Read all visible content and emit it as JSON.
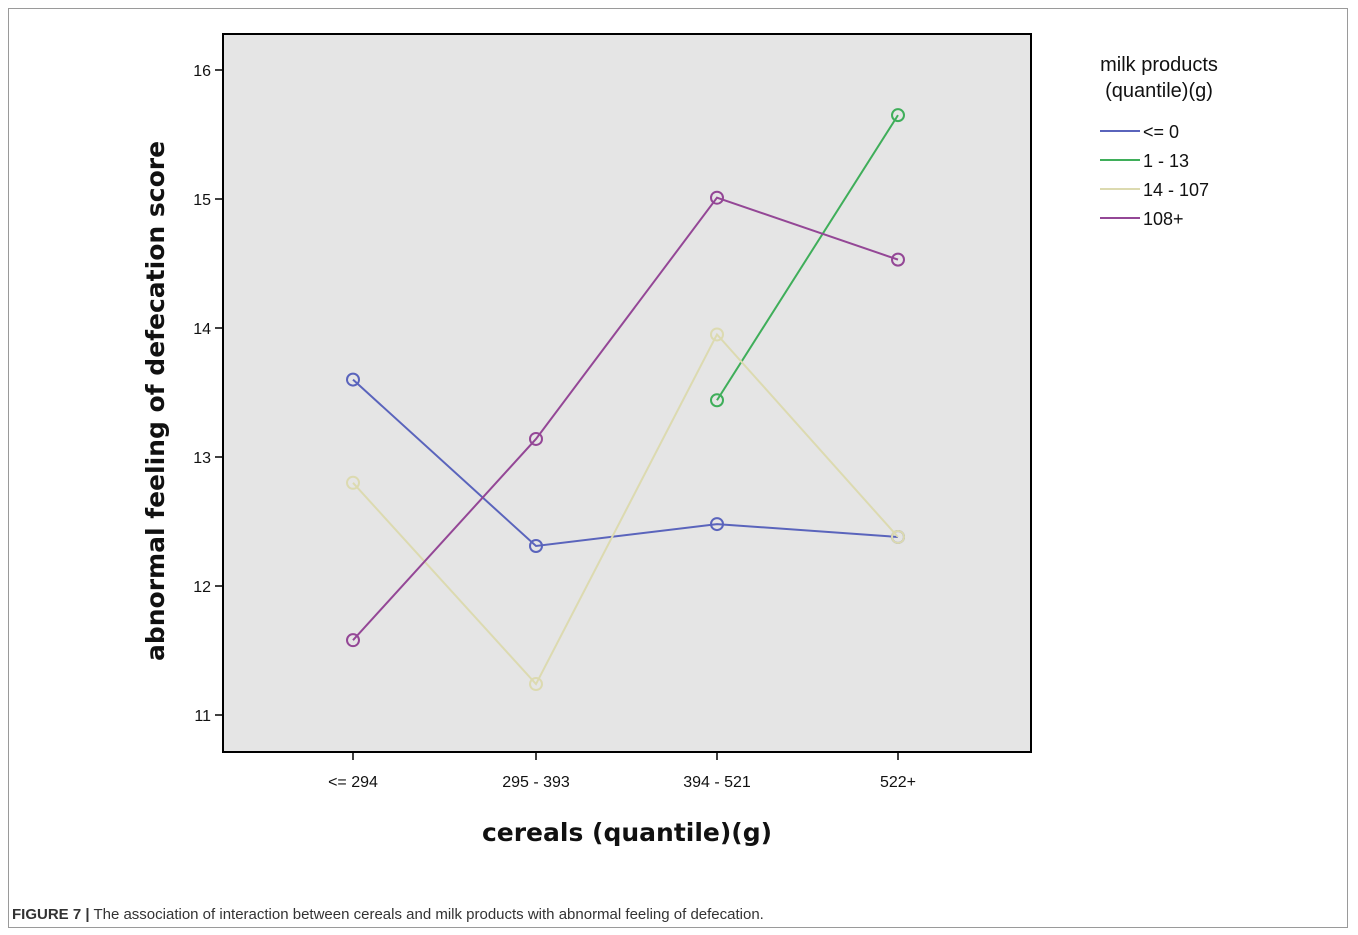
{
  "caption": {
    "label": "FIGURE 7 |",
    "text": "The association of interaction between cereals and milk products with abnormal feeling of defecation."
  },
  "chart_data": {
    "type": "line",
    "title": "",
    "xlabel": "cereals (quantile)(g)",
    "ylabel": "abnormal feeling of defecation score",
    "categories": [
      "<= 294",
      "295 - 393",
      "394 - 521",
      "522+"
    ],
    "ylim": [
      10.75,
      16.25
    ],
    "yticks": [
      11,
      12,
      13,
      14,
      15,
      16
    ],
    "grid": false,
    "plot_background": "#e5e5e5",
    "legend": {
      "title_line1": "milk products",
      "title_line2": "(quantile)(g)",
      "placement": "right"
    },
    "series": [
      {
        "name": "<= 0",
        "color": "#5a64bc",
        "values": [
          13.6,
          12.31,
          12.48,
          12.38
        ]
      },
      {
        "name": "1 - 13",
        "color": "#3fae5a",
        "values": [
          null,
          null,
          13.44,
          15.65
        ]
      },
      {
        "name": "14 - 107",
        "color": "#dcdab0",
        "values": [
          12.8,
          11.24,
          13.95,
          12.38
        ]
      },
      {
        "name": "108+",
        "color": "#944796",
        "values": [
          11.58,
          13.14,
          15.01,
          14.53
        ]
      }
    ]
  }
}
